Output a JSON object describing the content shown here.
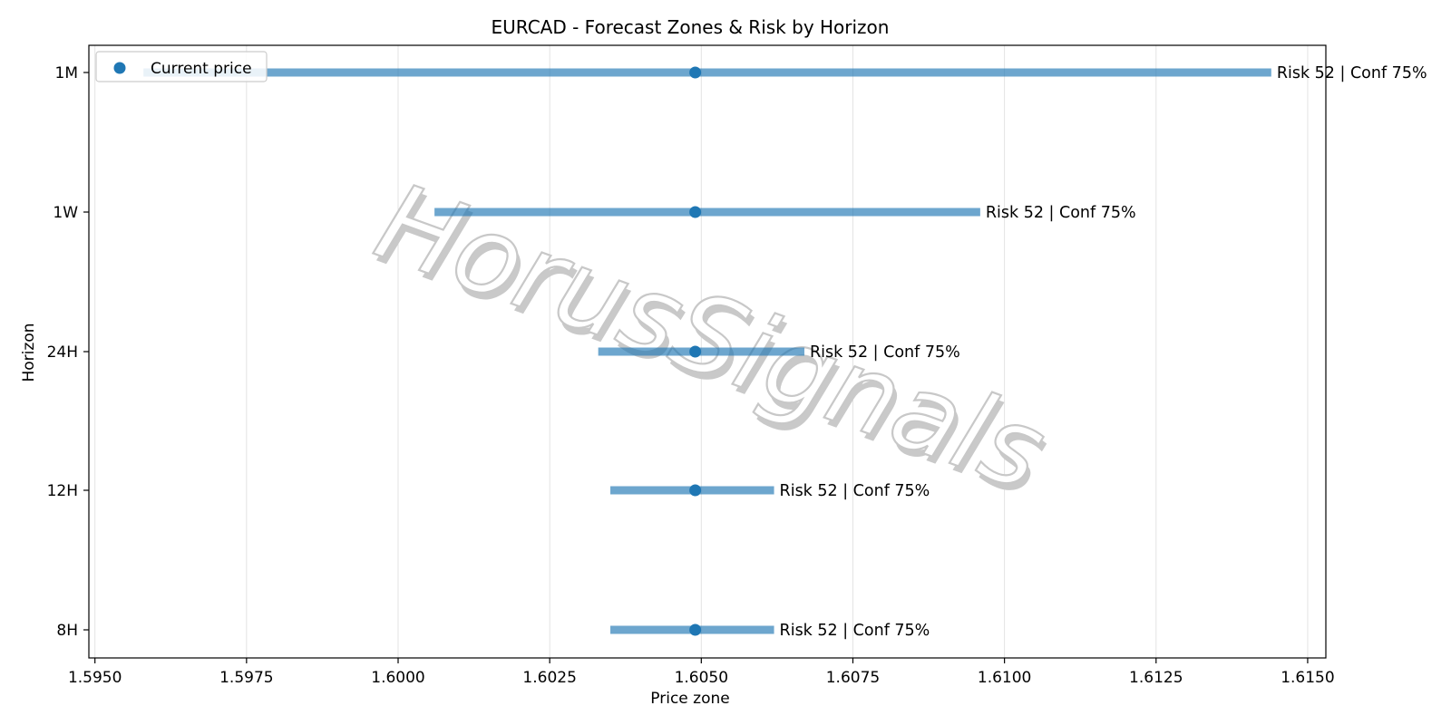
{
  "chart_data": {
    "type": "range",
    "title": "EURCAD - Forecast Zones & Risk by Horizon",
    "xlabel": "Price zone",
    "ylabel": "Horizon",
    "xlim": [
      1.5949,
      1.6153
    ],
    "xticks": [
      1.595,
      1.5975,
      1.6,
      1.6025,
      1.605,
      1.6075,
      1.61,
      1.6125,
      1.615
    ],
    "xtick_labels": [
      "1.5950",
      "1.5975",
      "1.6000",
      "1.6025",
      "1.6050",
      "1.6075",
      "1.6100",
      "1.6125",
      "1.6150"
    ],
    "grid": "vertical",
    "legend": {
      "position": "top-left",
      "entries": [
        "Current price"
      ]
    },
    "series_color": "#1f77b4",
    "current_price": 1.6049,
    "horizons": [
      {
        "label": "1M",
        "low": 1.5958,
        "high": 1.6144,
        "annotation": "Risk 52 | Conf 75%"
      },
      {
        "label": "1W",
        "low": 1.6006,
        "high": 1.6096,
        "annotation": "Risk 52 | Conf 75%"
      },
      {
        "label": "24H",
        "low": 1.6033,
        "high": 1.6067,
        "annotation": "Risk 52 | Conf 75%"
      },
      {
        "label": "12H",
        "low": 1.6035,
        "high": 1.6062,
        "annotation": "Risk 52 | Conf 75%"
      },
      {
        "label": "8H",
        "low": 1.6035,
        "high": 1.6062,
        "annotation": "Risk 52 | Conf 75%"
      }
    ]
  },
  "watermark": "HorusSignals"
}
